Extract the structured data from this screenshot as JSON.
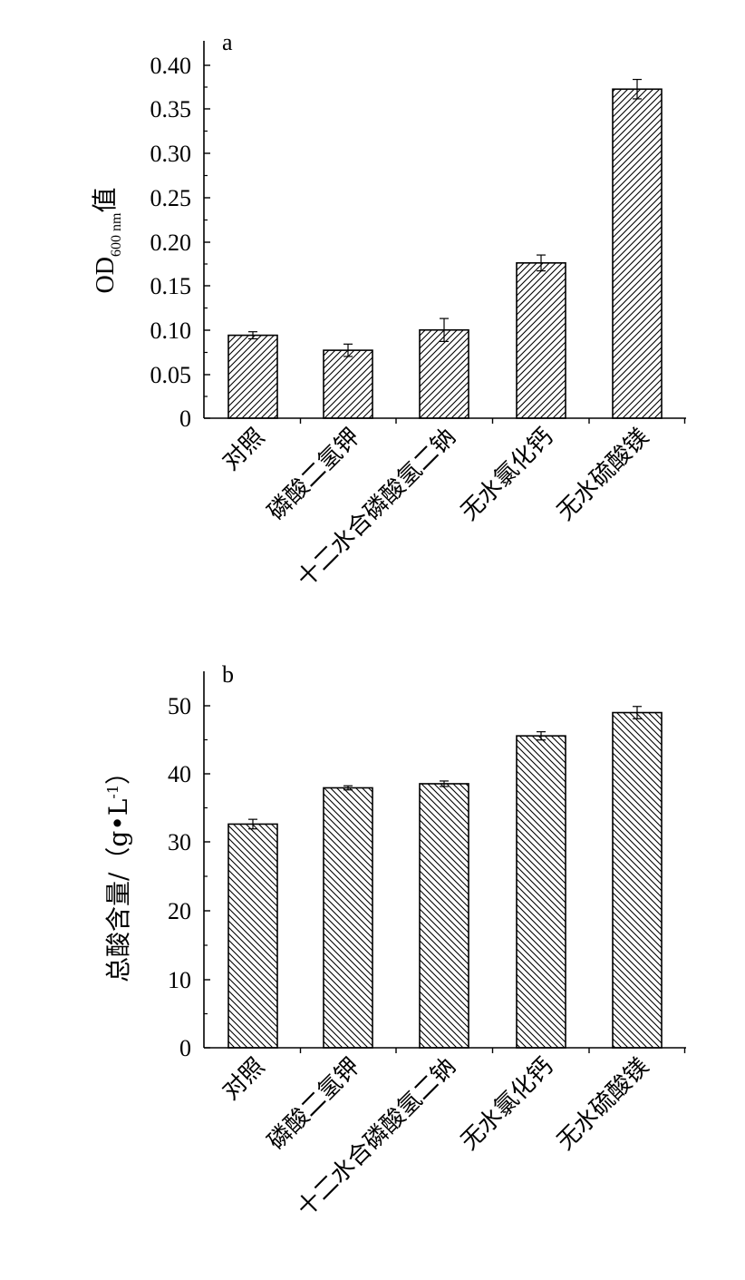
{
  "chart_data": [
    {
      "type": "bar",
      "panel_label": "a",
      "categories": [
        "对照",
        "磷酸二氢钾",
        "十二水合磷酸氢二钠",
        "无水氯化钙",
        "无水硫酸镁"
      ],
      "values": [
        0.094,
        0.077,
        0.1,
        0.176,
        0.373
      ],
      "errors": [
        0.004,
        0.007,
        0.013,
        0.009,
        0.011
      ],
      "ylabel": {
        "main": "OD",
        "sub": "600 nm",
        "suffix": "值"
      },
      "ylim": [
        0,
        0.42
      ],
      "yticks": [
        0,
        0.05,
        0.1,
        0.15,
        0.2,
        0.25,
        0.3,
        0.35,
        0.4
      ],
      "ytick_labels": [
        "0",
        "0.05",
        "0.10",
        "0.15",
        "0.20",
        "0.25",
        "0.30",
        "0.35",
        "0.40"
      ],
      "hatch": "forward-diagonal",
      "grid": false
    },
    {
      "type": "bar",
      "panel_label": "b",
      "categories": [
        "对照",
        "磷酸二氢钾",
        "十二水合磷酸氢二钠",
        "无水氯化钙",
        "无水硫酸镁"
      ],
      "values": [
        32.7,
        38.0,
        38.6,
        45.6,
        49.0
      ],
      "errors": [
        0.7,
        0.3,
        0.4,
        0.6,
        0.9
      ],
      "ylabel": {
        "main": "总酸含量/（g•L",
        "sup": "-1",
        "suffix": "）"
      },
      "ylim": [
        0,
        55
      ],
      "yticks": [
        0,
        10,
        20,
        30,
        40,
        50
      ],
      "ytick_labels": [
        "0",
        "10",
        "20",
        "30",
        "40",
        "50"
      ],
      "hatch": "back-diagonal",
      "grid": false
    }
  ]
}
